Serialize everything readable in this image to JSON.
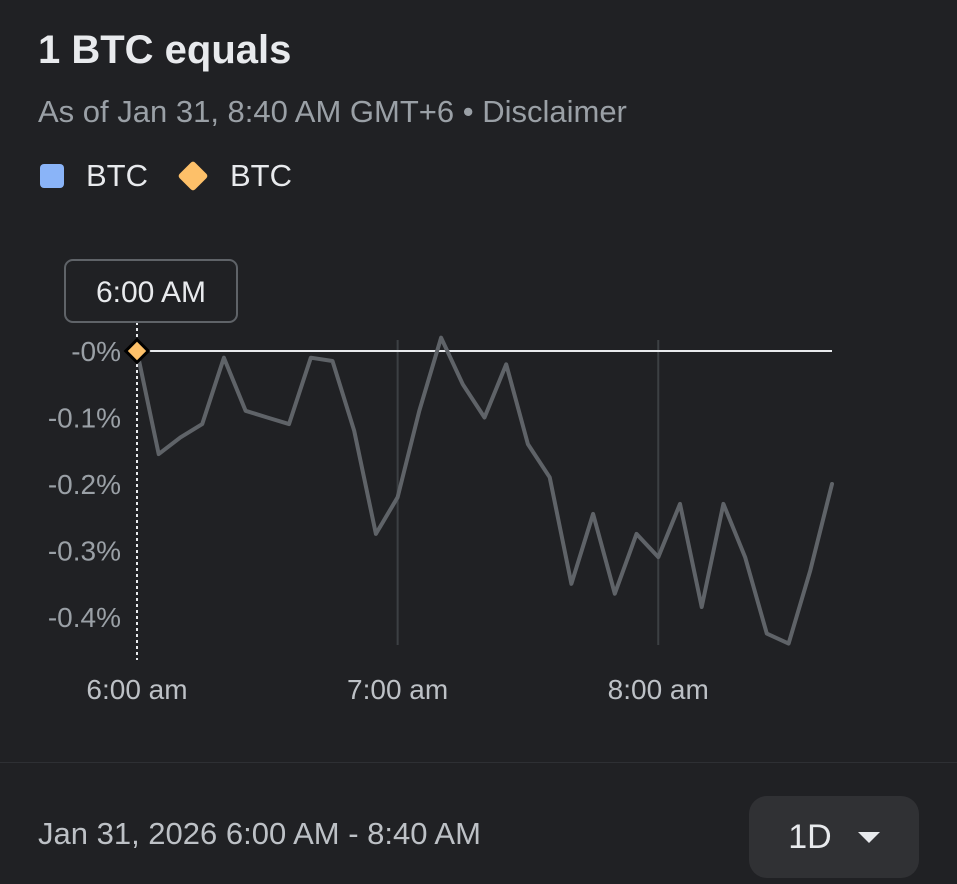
{
  "header": {
    "title": "1 BTC equals",
    "subtitle_prefix": "As of Jan 31, 8:40 AM GMT+6 • ",
    "disclaimer_label": "Disclaimer"
  },
  "legend": {
    "items": [
      {
        "label": "BTC",
        "color": "#8ab4f8",
        "shape": "square"
      },
      {
        "label": "BTC",
        "color": "#fdc069",
        "shape": "diamond"
      }
    ]
  },
  "tooltip": {
    "label": "6:00 AM"
  },
  "footer": {
    "range": "Jan 31, 2026 6:00 AM - 8:40 AM",
    "period": "1D"
  },
  "chart_data": {
    "type": "line",
    "x_unit": "minutes",
    "xlabel": "",
    "ylabel": "",
    "x_ticks": [
      {
        "value": 0,
        "label": "6:00 am"
      },
      {
        "value": 60,
        "label": "7:00 am"
      },
      {
        "value": 120,
        "label": "8:00 am"
      }
    ],
    "y_ticks": [
      {
        "value": 0,
        "label": "-0%"
      },
      {
        "value": -0.1,
        "label": "-0.1%"
      },
      {
        "value": -0.2,
        "label": "-0.2%"
      },
      {
        "value": -0.3,
        "label": "-0.3%"
      },
      {
        "value": -0.4,
        "label": "-0.4%"
      }
    ],
    "xlim": [
      0,
      160
    ],
    "ylim": [
      -0.45,
      0.02
    ],
    "reference_line": 0,
    "highlight_x": 0,
    "series": [
      {
        "color": "#5f6368",
        "points": [
          [
            0,
            0
          ],
          [
            5,
            -0.155
          ],
          [
            10,
            -0.13
          ],
          [
            15,
            -0.11
          ],
          [
            20,
            -0.01
          ],
          [
            25,
            -0.09
          ],
          [
            30,
            -0.1
          ],
          [
            35,
            -0.11
          ],
          [
            40,
            -0.01
          ],
          [
            45,
            -0.015
          ],
          [
            50,
            -0.12
          ],
          [
            55,
            -0.275
          ],
          [
            60,
            -0.22
          ],
          [
            65,
            -0.09
          ],
          [
            70,
            0.02
          ],
          [
            75,
            -0.05
          ],
          [
            80,
            -0.1
          ],
          [
            85,
            -0.02
          ],
          [
            90,
            -0.14
          ],
          [
            95,
            -0.19
          ],
          [
            100,
            -0.35
          ],
          [
            105,
            -0.245
          ],
          [
            110,
            -0.365
          ],
          [
            115,
            -0.275
          ],
          [
            120,
            -0.31
          ],
          [
            125,
            -0.23
          ],
          [
            130,
            -0.385
          ],
          [
            135,
            -0.23
          ],
          [
            140,
            -0.31
          ],
          [
            145,
            -0.425
          ],
          [
            150,
            -0.44
          ],
          [
            155,
            -0.33
          ],
          [
            160,
            -0.2
          ]
        ]
      }
    ]
  }
}
